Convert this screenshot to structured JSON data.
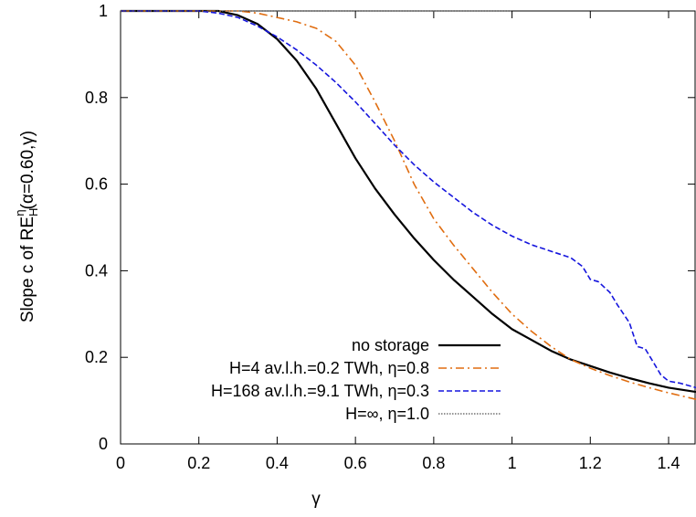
{
  "chart_data": {
    "type": "line",
    "title": "",
    "xlabel": "γ",
    "ylabel": {
      "prefix": "Slope c of RE",
      "sup": "η",
      "sub": "H",
      "suffix": "(α=0.60,γ)"
    },
    "xlim": [
      0,
      1.47
    ],
    "ylim": [
      0,
      1
    ],
    "xticks": [
      0,
      0.2,
      0.4,
      0.6,
      0.8,
      1,
      1.2,
      1.4
    ],
    "xtick_labels": [
      "0",
      "0.2",
      "0.4",
      "0.6",
      "0.8",
      "1",
      "1.2",
      "1.4"
    ],
    "yticks": [
      0,
      0.2,
      0.4,
      0.6,
      0.8,
      1
    ],
    "ytick_labels": [
      "0",
      "0.2",
      "0.4",
      "0.6",
      "0.8",
      "1"
    ],
    "grid": false,
    "legend_position": "bottom-right",
    "series": [
      {
        "name": "no storage",
        "color": "#000000",
        "dash": "solid",
        "x": [
          0,
          0.25,
          0.3,
          0.35,
          0.4,
          0.45,
          0.5,
          0.55,
          0.6,
          0.65,
          0.7,
          0.75,
          0.8,
          0.85,
          0.9,
          0.95,
          1.0,
          1.05,
          1.1,
          1.15,
          1.2,
          1.25,
          1.3,
          1.35,
          1.4,
          1.47
        ],
        "y": [
          1.0,
          1.0,
          0.99,
          0.97,
          0.935,
          0.885,
          0.82,
          0.74,
          0.66,
          0.59,
          0.53,
          0.475,
          0.425,
          0.38,
          0.34,
          0.3,
          0.265,
          0.24,
          0.215,
          0.195,
          0.18,
          0.165,
          0.152,
          0.14,
          0.13,
          0.12
        ]
      },
      {
        "name": "H=4 av.l.h.=0.2 TWh, η=0.8",
        "color": "#e06d10",
        "dash": "dashdot",
        "x": [
          0,
          0.3,
          0.35,
          0.4,
          0.45,
          0.5,
          0.55,
          0.6,
          0.65,
          0.7,
          0.75,
          0.8,
          0.85,
          0.9,
          0.95,
          1.0,
          1.05,
          1.1,
          1.15,
          1.2,
          1.25,
          1.3,
          1.35,
          1.4,
          1.47
        ],
        "y": [
          1.0,
          1.0,
          0.995,
          0.985,
          0.975,
          0.96,
          0.93,
          0.875,
          0.79,
          0.7,
          0.6,
          0.52,
          0.46,
          0.405,
          0.35,
          0.3,
          0.26,
          0.225,
          0.195,
          0.175,
          0.158,
          0.143,
          0.13,
          0.118,
          0.103
        ]
      },
      {
        "name": "H=168 av.l.h.=9.1 TWh, η=0.3",
        "color": "#1515dd",
        "dash": "dashed",
        "x": [
          0,
          0.2,
          0.25,
          0.3,
          0.35,
          0.4,
          0.45,
          0.5,
          0.55,
          0.6,
          0.65,
          0.7,
          0.75,
          0.8,
          0.85,
          0.9,
          0.95,
          1.0,
          1.05,
          1.1,
          1.15,
          1.18,
          1.2,
          1.22,
          1.25,
          1.27,
          1.3,
          1.32,
          1.34,
          1.36,
          1.38,
          1.4,
          1.43,
          1.47
        ],
        "y": [
          1.0,
          1.0,
          0.995,
          0.985,
          0.965,
          0.94,
          0.91,
          0.875,
          0.835,
          0.79,
          0.74,
          0.69,
          0.645,
          0.605,
          0.57,
          0.535,
          0.505,
          0.48,
          0.46,
          0.445,
          0.43,
          0.41,
          0.38,
          0.375,
          0.35,
          0.32,
          0.28,
          0.225,
          0.22,
          0.19,
          0.16,
          0.145,
          0.14,
          0.13
        ]
      },
      {
        "name": "H=∞, η=1.0",
        "color": "#555555",
        "dash": "dotted",
        "x": [
          0,
          1.0
        ],
        "y": [
          1.0,
          1.0
        ]
      }
    ]
  }
}
